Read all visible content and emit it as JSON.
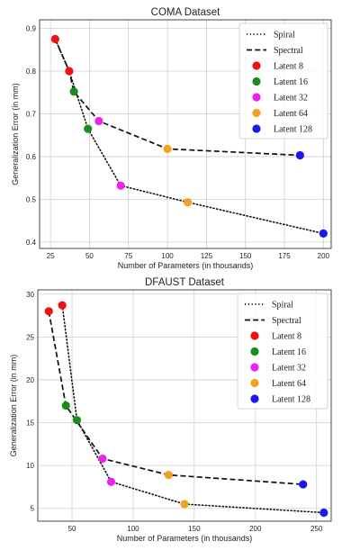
{
  "legend_swatch_colors": {
    "Latent 8": "#ee1111",
    "Latent 16": "#1a8c1a",
    "Latent 32": "#ee22ee",
    "Latent 64": "#f5a020",
    "Latent 128": "#1a1aee"
  },
  "chart_data": [
    {
      "type": "line",
      "title": "COMA Dataset",
      "xlabel": "Number of Parameters (in thousands)",
      "ylabel": "Generalization Error (in mm)",
      "xlim": [
        18,
        205
      ],
      "ylim": [
        0.385,
        0.92
      ],
      "xticks": [
        25,
        50,
        75,
        100,
        125,
        150,
        175,
        200
      ],
      "yticks": [
        0.4,
        0.5,
        0.6,
        0.7,
        0.8,
        0.9
      ],
      "grid": true,
      "legend_position": "top-right",
      "series": [
        {
          "name": "Spiral",
          "style": "dotted",
          "x": [
            28,
            37,
            49,
            70,
            113,
            200
          ],
          "y": [
            0.875,
            0.8,
            0.665,
            0.532,
            0.493,
            0.42
          ]
        },
        {
          "name": "Spectral",
          "style": "dashed",
          "x": [
            28,
            37,
            40,
            56,
            100,
            185
          ],
          "y": [
            0.875,
            0.8,
            0.752,
            0.683,
            0.618,
            0.603
          ]
        }
      ],
      "points": [
        {
          "series": "Latent 8",
          "x": 28,
          "y": 0.875
        },
        {
          "series": "Latent 8",
          "x": 37,
          "y": 0.8
        },
        {
          "series": "Latent 16",
          "x": 40,
          "y": 0.752
        },
        {
          "series": "Latent 16",
          "x": 49,
          "y": 0.665
        },
        {
          "series": "Latent 32",
          "x": 56,
          "y": 0.683
        },
        {
          "series": "Latent 32",
          "x": 70,
          "y": 0.532
        },
        {
          "series": "Latent 64",
          "x": 100,
          "y": 0.618
        },
        {
          "series": "Latent 64",
          "x": 113,
          "y": 0.493
        },
        {
          "series": "Latent 128",
          "x": 185,
          "y": 0.603
        },
        {
          "series": "Latent 128",
          "x": 200,
          "y": 0.42
        }
      ]
    },
    {
      "type": "line",
      "title": "DFAUST Dataset",
      "xlabel": "Number of Parameters (in thousands)",
      "ylabel": "Generalization Error (in mm)",
      "xlim": [
        22,
        262
      ],
      "ylim": [
        3.5,
        30.5
      ],
      "xticks": [
        50,
        100,
        150,
        200,
        250
      ],
      "yticks": [
        5,
        10,
        15,
        20,
        25,
        30
      ],
      "grid": true,
      "legend_position": "top-right",
      "series": [
        {
          "name": "Spiral",
          "style": "dotted",
          "x": [
            42,
            54,
            82,
            142,
            256
          ],
          "y": [
            28.7,
            15.3,
            8.1,
            5.5,
            4.5
          ]
        },
        {
          "name": "Spectral",
          "style": "dashed",
          "x": [
            31,
            45,
            75,
            129,
            239
          ],
          "y": [
            28.0,
            17.0,
            10.8,
            8.9,
            7.8
          ]
        }
      ],
      "points": [
        {
          "series": "Latent 8",
          "x": 31,
          "y": 28.0
        },
        {
          "series": "Latent 8",
          "x": 42,
          "y": 28.7
        },
        {
          "series": "Latent 16",
          "x": 45,
          "y": 17.0
        },
        {
          "series": "Latent 16",
          "x": 54,
          "y": 15.3
        },
        {
          "series": "Latent 32",
          "x": 75,
          "y": 10.8
        },
        {
          "series": "Latent 32",
          "x": 82,
          "y": 8.1
        },
        {
          "series": "Latent 64",
          "x": 129,
          "y": 8.9
        },
        {
          "series": "Latent 64",
          "x": 142,
          "y": 5.5
        },
        {
          "series": "Latent 128",
          "x": 239,
          "y": 7.8
        },
        {
          "series": "Latent 128",
          "x": 256,
          "y": 4.5
        }
      ]
    }
  ]
}
